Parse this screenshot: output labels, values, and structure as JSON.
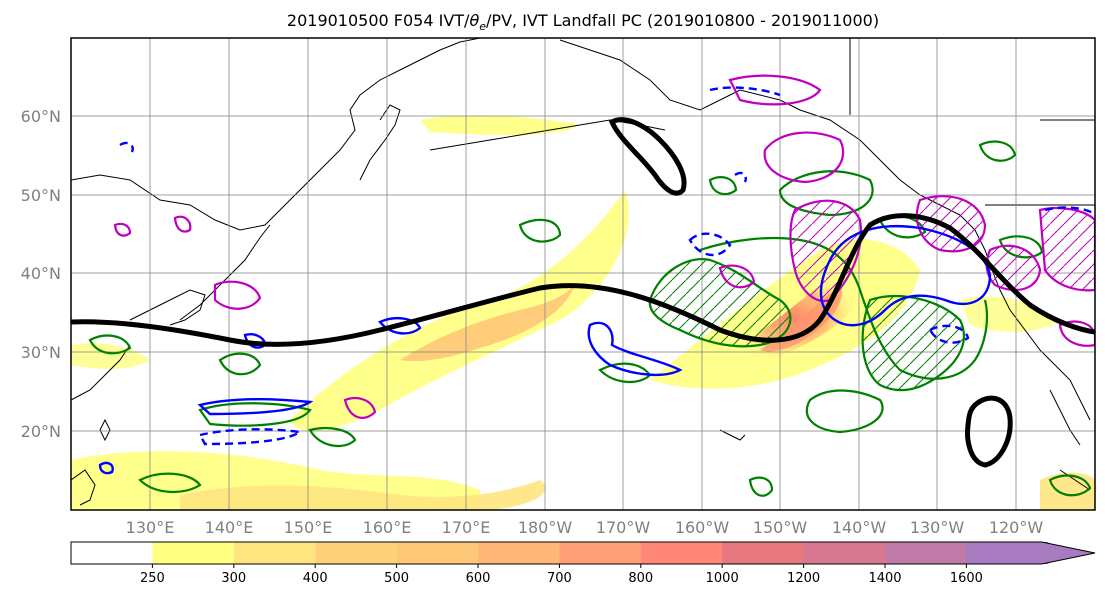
{
  "title": "2019010500 F054 IVT/θₑ/PV, IVT Landfall PC (2019010800 - 2019011000)",
  "title_parts": {
    "pre": "2019010500 F054 IVT/",
    "theta": "θ",
    "sub": "e",
    "post": "/PV, IVT Landfall PC (2019010800 - 2019011000)"
  },
  "map": {
    "lat_labels": [
      "60°N",
      "50°N",
      "40°N",
      "30°N",
      "20°N"
    ],
    "lon_labels": [
      "130°E",
      "140°E",
      "150°E",
      "160°E",
      "170°E",
      "180°W",
      "170°W",
      "160°W",
      "150°W",
      "140°W",
      "130°W",
      "120°W"
    ]
  },
  "colorbar": {
    "labels": [
      "250",
      "300",
      "400",
      "500",
      "600",
      "700",
      "800",
      "1000",
      "1200",
      "1400",
      "1600"
    ],
    "colors": [
      "#ffffff",
      "#ffff80",
      "#ffe680",
      "#ffd27a",
      "#ffc878",
      "#ffb878",
      "#ffa078",
      "#ff8878",
      "#e87880",
      "#d87890",
      "#c07aa8",
      "#a87ac0"
    ]
  },
  "colors": {
    "ivt_low": "#ffff80",
    "ivt_mid": "#ffc060",
    "ivt_high": "#ff7060",
    "contour_black": "#000000",
    "contour_green": "#008000",
    "contour_blue": "#0000ff",
    "contour_magenta": "#c000c0"
  }
}
